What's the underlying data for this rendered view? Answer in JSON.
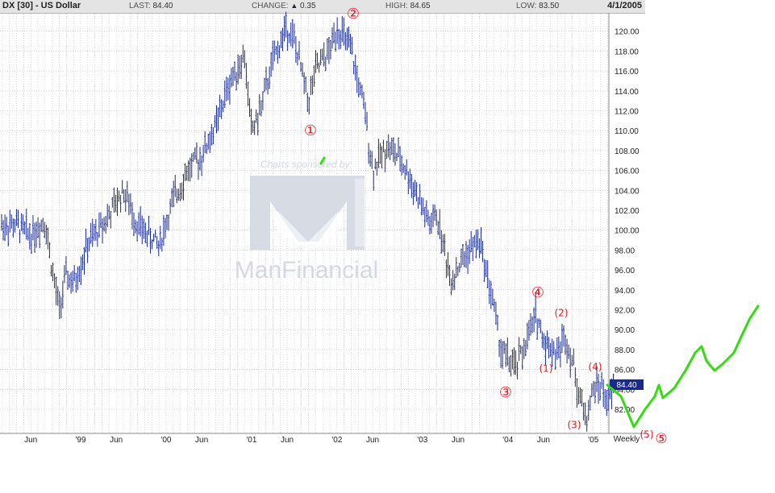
{
  "header": {
    "symbol": "DX [30] - US Dollar",
    "last_label": "LAST:",
    "last_value": "84.40",
    "change_label": "CHANGE:",
    "change_arrow": "▲",
    "change_value": "0.35",
    "high_label": "HIGH:",
    "high_value": "84.65",
    "low_label": "LOW:",
    "low_value": "83.50",
    "date": "4/1/2005"
  },
  "watermark": {
    "sponsor_text": "Charts sponsored by:",
    "brand": "ManFinancial"
  },
  "period_label": "Weekly",
  "last_price_tag": "84.40",
  "colors": {
    "bars": "#1a2a8c",
    "annotation_red": "#e8121a",
    "projection_green": "#33dd11",
    "watermark": "#d3d8e2",
    "grid": "#b9b9b9"
  },
  "chart_data": {
    "type": "line",
    "title": "DX [30] - US Dollar",
    "frequency": "Weekly",
    "ylim": [
      80.2,
      121.8
    ],
    "y_ticks": [
      "82.00",
      "84.00",
      "86.00",
      "88.00",
      "90.00",
      "92.00",
      "94.00",
      "96.00",
      "98.00",
      "100.00",
      "102.00",
      "104.00",
      "106.00",
      "108.00",
      "110.00",
      "112.00",
      "114.00",
      "116.00",
      "118.00",
      "120.00"
    ],
    "x_ticks": [
      "Jun",
      "'99",
      "Jun",
      "'00",
      "Jun",
      "'01",
      "Jun",
      "'02",
      "Jun",
      "'03",
      "Jun",
      "'04",
      "Jun",
      "'05"
    ],
    "series": [
      {
        "approx_path": [
          [
            "1998-04",
            100.5
          ],
          [
            "1998-06",
            99.5
          ],
          [
            "1998-08",
            101.0
          ],
          [
            "1998-09",
            96.0
          ],
          [
            "1998-10",
            92.0
          ],
          [
            "1998-11",
            95.5
          ],
          [
            "1998-12",
            94.5
          ],
          [
            "1999-02",
            98.5
          ],
          [
            "1999-05",
            101.5
          ],
          [
            "1999-07",
            104.0
          ],
          [
            "1999-09",
            100.5
          ],
          [
            "1999-12",
            98.5
          ],
          [
            "2000-02",
            103.0
          ],
          [
            "2000-04",
            106.0
          ],
          [
            "2000-06",
            107.5
          ],
          [
            "2000-08",
            110.5
          ],
          [
            "2000-10",
            115.0
          ],
          [
            "2000-12",
            117.5
          ],
          [
            "2001-01",
            110.0
          ],
          [
            "2001-02",
            111.5
          ],
          [
            "2001-04",
            117.0
          ],
          [
            "2001-06",
            120.5
          ],
          [
            "2001-07",
            119.0
          ],
          [
            "2001-09",
            113.0
          ],
          [
            "2001-10",
            116.0
          ],
          [
            "2001-12",
            118.0
          ],
          [
            "2002-01",
            120.5
          ],
          [
            "2002-03",
            118.0
          ],
          [
            "2002-05",
            111.5
          ],
          [
            "2002-06",
            106.0
          ],
          [
            "2002-08",
            108.5
          ],
          [
            "2002-10",
            107.0
          ],
          [
            "2002-12",
            104.0
          ],
          [
            "2003-02",
            100.5
          ],
          [
            "2003-03",
            101.5
          ],
          [
            "2003-05",
            95.0
          ],
          [
            "2003-07",
            97.5
          ],
          [
            "2003-09",
            99.0
          ],
          [
            "2003-11",
            92.5
          ],
          [
            "2003-12",
            88.0
          ],
          [
            "2004-02",
            86.0
          ],
          [
            "2004-04",
            89.5
          ],
          [
            "2004-05",
            91.5
          ],
          [
            "2004-06",
            89.0
          ],
          [
            "2004-08",
            87.5
          ],
          [
            "2004-09",
            89.5
          ],
          [
            "2004-10",
            87.0
          ],
          [
            "2004-11",
            83.5
          ],
          [
            "2004-12",
            81.0
          ],
          [
            "2005-01",
            84.0
          ],
          [
            "2005-02",
            84.5
          ],
          [
            "2005-03",
            82.5
          ],
          [
            "2005-04",
            84.4
          ]
        ]
      }
    ],
    "annotations": [
      {
        "text": "①",
        "near": [
          "2001-09",
          110.0
        ]
      },
      {
        "text": "②",
        "near": [
          "2002-01",
          121.8
        ]
      },
      {
        "text": "③",
        "near": [
          "2004-03",
          84.6
        ]
      },
      {
        "text": "④",
        "near": [
          "2004-06",
          93.8
        ]
      },
      {
        "text": "⑤",
        "near": "bottom-right outside chart"
      },
      {
        "text": "(1)",
        "near": [
          "2004-08",
          85.7
        ]
      },
      {
        "text": "(2)",
        "near": [
          "2004-09",
          91.6
        ]
      },
      {
        "text": "(3)",
        "near": [
          "2004-12",
          80.3
        ]
      },
      {
        "text": "(4)",
        "near": [
          "2005-01",
          86.5
        ]
      },
      {
        "text": "(5)",
        "near": "bottom-right outside chart"
      }
    ],
    "projection": {
      "color": "green",
      "description_points": [
        [
          "2005-04",
          84.4
        ],
        [
          "2005-06",
          80.5
        ],
        [
          "2005-09",
          84.8
        ],
        [
          "2005-10",
          83.1
        ],
        [
          "2006-01",
          88.3
        ],
        [
          "2006-02",
          86.0
        ],
        [
          "2006-04",
          87.2
        ],
        [
          "2006-08",
          92.8
        ]
      ]
    }
  }
}
